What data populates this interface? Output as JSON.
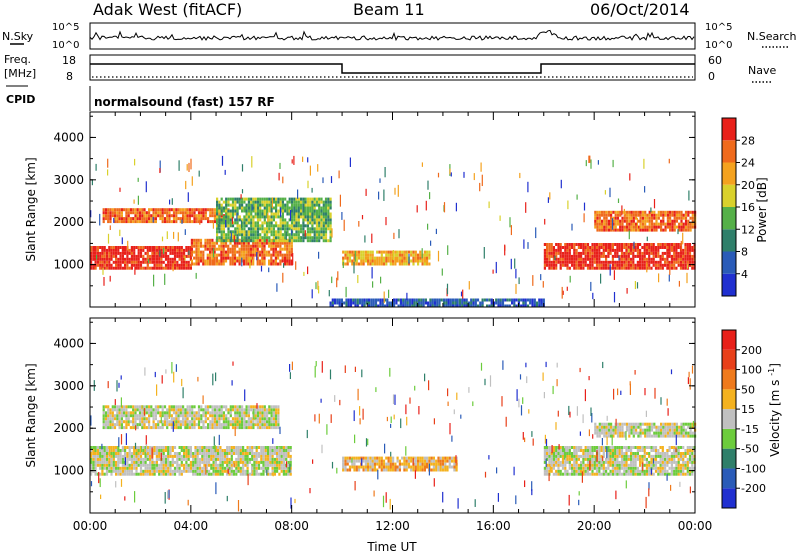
{
  "header": {
    "station": "Adak West (fitACF)",
    "beam": "Beam 11",
    "date": "06/Oct/2014"
  },
  "strips": {
    "nsky_label": "N.Sky",
    "nsky_ticks": [
      "10^5",
      "10^0"
    ],
    "nsearch_label": "N.Search",
    "nsearch_ticks": [
      "10^5",
      "10^0"
    ],
    "freq_label": "Freq.",
    "freq_unit": "[MHz]",
    "freq_ticks": [
      "18",
      "8"
    ],
    "nave_label": "Nave",
    "nave_ticks": [
      "60",
      "0"
    ],
    "cpid_label": "CPID",
    "cpid_text": "normalsound (fast) 157 RF"
  },
  "chart_data": [
    {
      "type": "heatmap",
      "panel": "power",
      "ylabel": "Slant Range [km]",
      "xlabel": "",
      "x_range_hours": [
        0,
        24
      ],
      "ylim": [
        0,
        4600
      ],
      "yticks": [
        "1000",
        "2000",
        "3000",
        "4000"
      ],
      "xticks": [
        "00:00",
        "04:00",
        "08:00",
        "12:00",
        "16:00",
        "20:00",
        "00:00"
      ],
      "colorbar": {
        "label": "Power [dB]",
        "ticks": [
          "28",
          "24",
          "20",
          "16",
          "12",
          "8",
          "4"
        ],
        "colors": [
          "#2030d0",
          "#2a5bb8",
          "#2f7f6a",
          "#55b048",
          "#d9d12c",
          "#f4a21f",
          "#ef6a1c",
          "#e8201a"
        ]
      },
      "regions": [
        {
          "t0": 0.0,
          "t1": 4.0,
          "r0": 950,
          "r1": 1450,
          "level": 7
        },
        {
          "t0": 4.0,
          "t1": 8.0,
          "r0": 1050,
          "r1": 1650,
          "level": 6
        },
        {
          "t0": 0.5,
          "t1": 5.5,
          "r0": 2050,
          "r1": 2350,
          "level": 6
        },
        {
          "t0": 5.0,
          "t1": 9.5,
          "r0": 1600,
          "r1": 2600,
          "level": 3
        },
        {
          "t0": 10.0,
          "t1": 13.5,
          "r0": 1050,
          "r1": 1400,
          "level": 5
        },
        {
          "t0": 18.0,
          "t1": 24.0,
          "r0": 950,
          "r1": 1550,
          "level": 7
        },
        {
          "t0": 20.0,
          "t1": 24.0,
          "r0": 1850,
          "r1": 2300,
          "level": 6
        },
        {
          "t0": 9.5,
          "t1": 18.0,
          "r0": 60,
          "r1": 250,
          "level": 1
        }
      ]
    },
    {
      "type": "heatmap",
      "panel": "velocity",
      "ylabel": "Slant Range [km]",
      "xlabel": "Time UT",
      "x_range_hours": [
        0,
        24
      ],
      "ylim": [
        0,
        4600
      ],
      "yticks": [
        "1000",
        "2000",
        "3000",
        "4000"
      ],
      "xticks": [
        "00:00",
        "04:00",
        "08:00",
        "12:00",
        "16:00",
        "20:00",
        "00:00"
      ],
      "colorbar": {
        "label": "Velocity [m s^-1]",
        "ticks": [
          "200",
          "100",
          "50",
          "15",
          "-15",
          "-50",
          "-100",
          "-200"
        ],
        "colors": [
          "#2030d0",
          "#2a5bb8",
          "#2f7f6a",
          "#6ccc3c",
          "#c0c0c0",
          "#f4b21f",
          "#ef7a1c",
          "#e8401a",
          "#e8201a"
        ]
      },
      "regions": [
        {
          "t0": 0.0,
          "t1": 8.0,
          "r0": 950,
          "r1": 1650,
          "level": 4
        },
        {
          "t0": 0.5,
          "t1": 7.5,
          "r0": 2050,
          "r1": 2600,
          "level": 4
        },
        {
          "t0": 10.0,
          "t1": 14.5,
          "r0": 1050,
          "r1": 1400,
          "level": 5
        },
        {
          "t0": 18.0,
          "t1": 24.0,
          "r0": 950,
          "r1": 1600,
          "level": 4
        },
        {
          "t0": 20.0,
          "t1": 24.0,
          "r0": 1850,
          "r1": 2200,
          "level": 4
        }
      ]
    }
  ]
}
